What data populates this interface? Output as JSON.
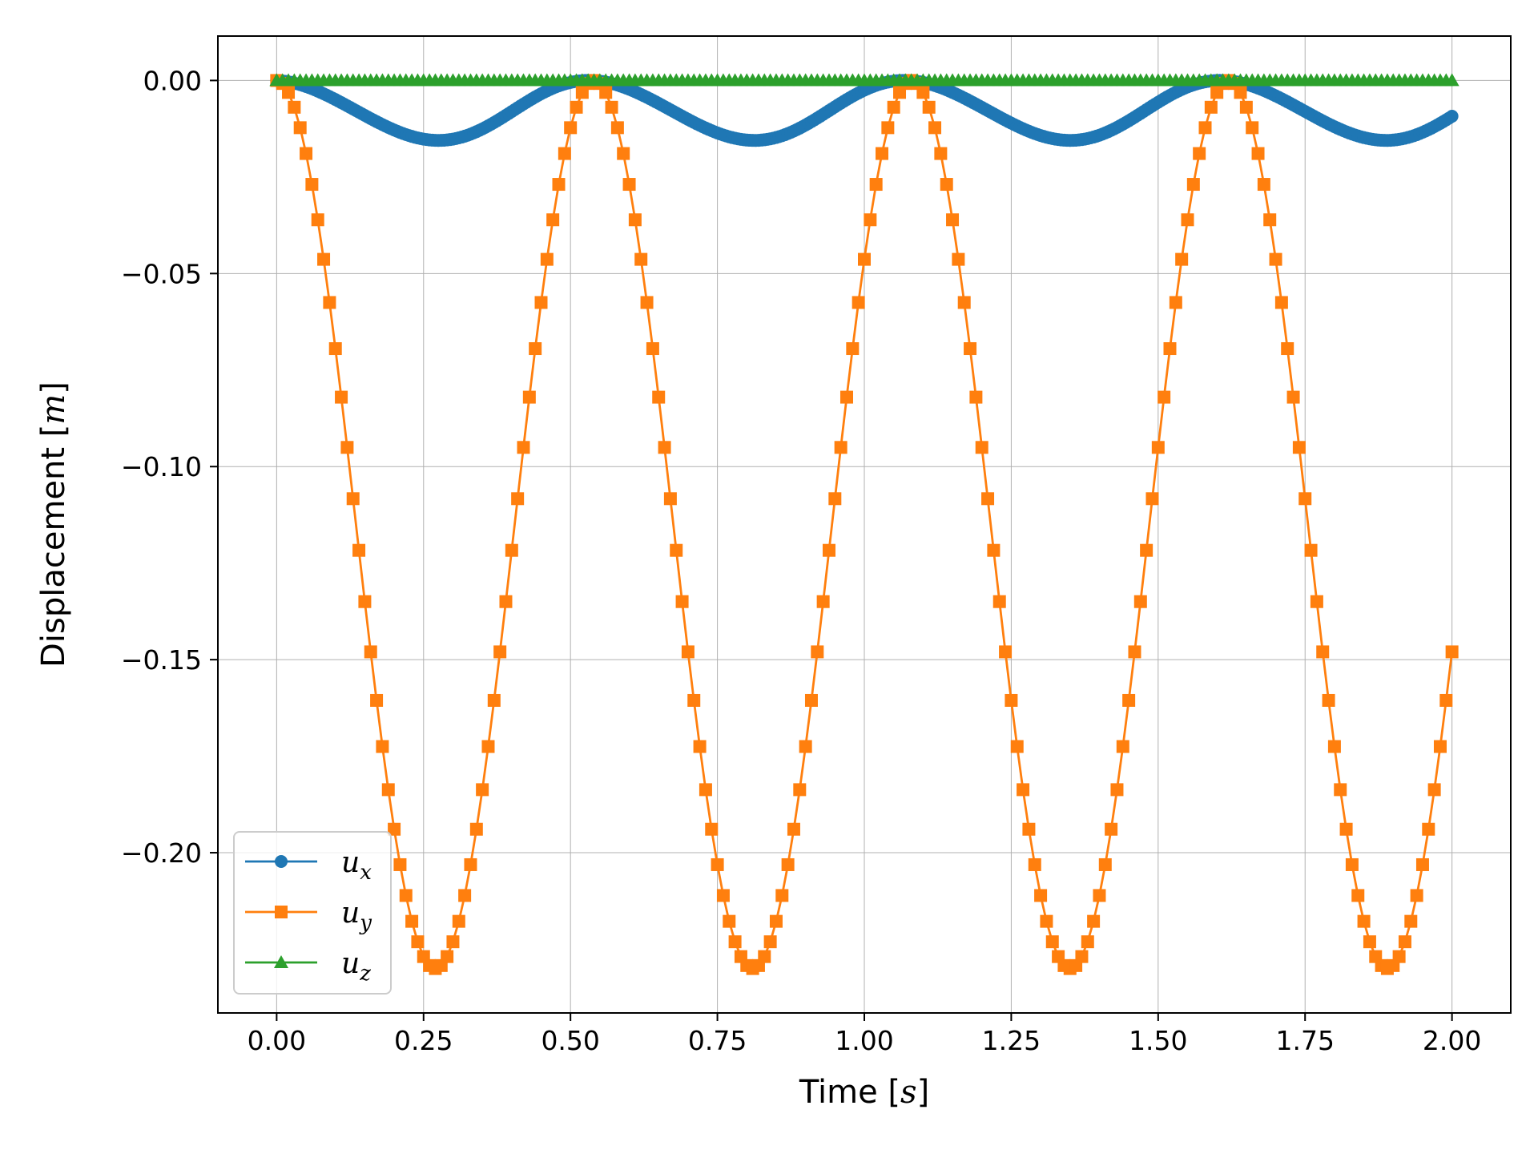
{
  "chart_data": {
    "type": "line",
    "xlabel_text": "Time [",
    "xlabel_unit": "s",
    "xlabel_close": "]",
    "ylabel_text": "Displacement [",
    "ylabel_unit": "m",
    "ylabel_close": "]",
    "xlim": [
      -0.1,
      2.1
    ],
    "ylim": [
      -0.2415,
      0.0115
    ],
    "x_ticks": [
      0.0,
      0.25,
      0.5,
      0.75,
      1.0,
      1.25,
      1.5,
      1.75,
      2.0
    ],
    "x_tick_labels": [
      "0.00",
      "0.25",
      "0.50",
      "0.75",
      "1.00",
      "1.25",
      "1.50",
      "1.75",
      "2.00"
    ],
    "y_ticks": [
      0.0,
      -0.05,
      -0.1,
      -0.15,
      -0.2
    ],
    "y_tick_labels": [
      "0.00",
      "−0.05",
      "−0.10",
      "−0.15",
      "−0.20"
    ],
    "grid": true,
    "legend_position": "lower-left",
    "x_start": 0.0,
    "x_end": 2.0,
    "series": [
      {
        "name": "u_x",
        "label_base": "u",
        "label_sub": "x",
        "color": "#1f77b4",
        "marker": "circle",
        "point_count": 401,
        "waveform": "min -0.0155 at t = 0.275, 0.82, 1.355, 1.89; max 0.000 at t = 0.0, 0.55, 1.085, 1.625; end -0.007 at t = 2.0"
      },
      {
        "name": "u_y",
        "label_base": "u",
        "label_sub": "y",
        "color": "#ff7f0e",
        "marker": "square",
        "point_count": 201,
        "waveform": "min -0.230 at t = 0.27, 0.81, 1.35, 1.89; max 0.000 at t = 0.0, 0.54, 1.08, 1.62; end -0.154 at t = 2.0"
      },
      {
        "name": "u_z",
        "label_base": "u",
        "label_sub": "z",
        "color": "#2ca02c",
        "marker": "triangle",
        "point_count": 201,
        "waveform": "constant 0.000"
      }
    ]
  }
}
